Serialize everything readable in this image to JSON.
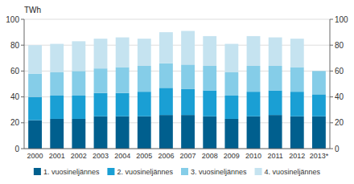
{
  "chart_data": {
    "type": "bar",
    "stacked": true,
    "ylabel": "TWh",
    "categories": [
      "2000",
      "2001",
      "2002",
      "2003",
      "2004",
      "2005",
      "2006",
      "2007",
      "2008",
      "2009",
      "2010",
      "2011",
      "2012",
      "2013*"
    ],
    "series": [
      {
        "name": "1. vuosineljännes",
        "color": "#005f8e",
        "values": [
          22,
          23,
          23,
          25,
          25,
          25,
          26,
          26,
          25,
          23,
          25,
          26,
          25,
          25
        ]
      },
      {
        "name": "2. vuosineljännes",
        "color": "#1a9fd4",
        "values": [
          18,
          18,
          18,
          18,
          18,
          19,
          21,
          20,
          20,
          18,
          19,
          19,
          19,
          17
        ]
      },
      {
        "name": "3. vuosineljännes",
        "color": "#85cde8",
        "values": [
          18,
          18,
          19,
          19,
          20,
          20,
          19,
          19,
          19,
          18,
          20,
          19,
          19,
          18
        ]
      },
      {
        "name": "4. vuosineljännes",
        "color": "#c5e3f0",
        "values": [
          22,
          22,
          23,
          23,
          23,
          21,
          24,
          26,
          23,
          22,
          23,
          22,
          22,
          0
        ]
      }
    ],
    "ylim": [
      0,
      100
    ],
    "yticks": [
      0,
      20,
      40,
      60,
      80,
      100
    ],
    "y2lim": [
      0,
      100
    ],
    "y2ticks": [
      0,
      20,
      40,
      60,
      80,
      100
    ],
    "grid": true,
    "legend": "bottom"
  }
}
